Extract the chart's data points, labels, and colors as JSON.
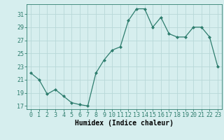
{
  "x": [
    0,
    1,
    2,
    3,
    4,
    5,
    6,
    7,
    8,
    9,
    10,
    11,
    12,
    13,
    14,
    15,
    16,
    17,
    18,
    19,
    20,
    21,
    22,
    23
  ],
  "y": [
    22.0,
    21.0,
    18.8,
    19.5,
    18.5,
    17.5,
    17.2,
    17.0,
    22.0,
    24.0,
    25.5,
    26.0,
    30.0,
    31.8,
    31.8,
    29.0,
    30.5,
    28.0,
    27.5,
    27.5,
    29.0,
    29.0,
    27.5,
    23.0
  ],
  "line_color": "#2e7d6e",
  "marker": "D",
  "marker_size": 2,
  "bg_color": "#d6eeee",
  "grid_color": "#b8d8d8",
  "ylabel_ticks": [
    17,
    19,
    21,
    23,
    25,
    27,
    29,
    31
  ],
  "ylim": [
    16.5,
    32.5
  ],
  "xlim": [
    -0.5,
    23.5
  ],
  "xlabel": "Humidex (Indice chaleur)",
  "xlabel_fontsize": 7,
  "tick_fontsize": 6
}
